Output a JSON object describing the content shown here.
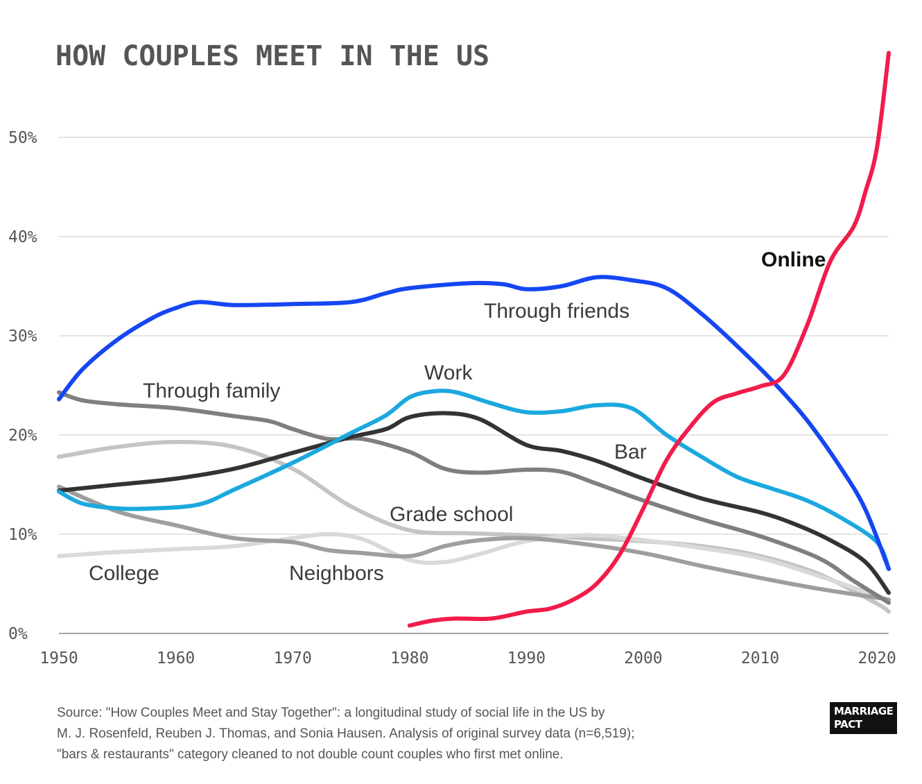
{
  "chart_data": {
    "type": "line",
    "title": "HOW COUPLES MEET IN THE US",
    "xlabel": "",
    "ylabel": "",
    "xlim": [
      1950,
      2021
    ],
    "ylim": [
      0,
      55
    ],
    "x_ticks": [
      "1950",
      "1960",
      "1970",
      "1980",
      "1990",
      "2000",
      "2010",
      "2020"
    ],
    "y_ticks": [
      {
        "value": 0,
        "label": "0%"
      },
      {
        "value": 10,
        "label": "10%"
      },
      {
        "value": 20,
        "label": "20%"
      },
      {
        "value": 30,
        "label": "30%"
      },
      {
        "value": 40,
        "label": "40%"
      },
      {
        "value": 50,
        "label": "50%"
      }
    ],
    "grid": true,
    "series": [
      {
        "name": "Grade school",
        "color": "#c4c4c4",
        "x": [
          1950,
          1955,
          1960,
          1965,
          1970,
          1975,
          1980,
          1985,
          1990,
          1995,
          2000,
          2005,
          2010,
          2015,
          2020,
          2021
        ],
        "y": [
          17.8,
          18.8,
          19.3,
          18.8,
          16.6,
          12.8,
          10.4,
          10.1,
          9.9,
          9.6,
          9.3,
          8.8,
          7.8,
          6.0,
          3.0,
          2.2
        ]
      },
      {
        "name": "College",
        "color": "#d9d9d9",
        "x": [
          1950,
          1955,
          1960,
          1965,
          1970,
          1973,
          1976,
          1980,
          1983,
          1986,
          1990,
          1995,
          2000,
          2005,
          2010,
          2015,
          2020,
          2021
        ],
        "y": [
          7.8,
          8.2,
          8.5,
          8.8,
          9.6,
          10.0,
          9.5,
          7.4,
          7.2,
          8.0,
          9.3,
          9.9,
          9.4,
          8.6,
          7.6,
          5.8,
          3.8,
          3.4
        ]
      },
      {
        "name": "Neighbors",
        "color": "#9e9e9e",
        "x": [
          1950,
          1955,
          1960,
          1965,
          1970,
          1973,
          1976,
          1980,
          1983,
          1986,
          1990,
          1995,
          2000,
          2005,
          2010,
          2015,
          2020,
          2021
        ],
        "y": [
          14.8,
          12.3,
          10.9,
          9.6,
          9.2,
          8.4,
          8.1,
          7.8,
          8.8,
          9.4,
          9.6,
          9.0,
          8.1,
          6.8,
          5.6,
          4.5,
          3.6,
          3.4
        ]
      },
      {
        "name": "Through family",
        "color": "#7f7f7f",
        "x": [
          1950,
          1952,
          1955,
          1960,
          1965,
          1968,
          1970,
          1973,
          1976,
          1980,
          1983,
          1986,
          1990,
          1993,
          1996,
          2000,
          2005,
          2010,
          2015,
          2018,
          2021
        ],
        "y": [
          24.3,
          23.5,
          23.1,
          22.7,
          21.9,
          21.4,
          20.6,
          19.6,
          19.6,
          18.3,
          16.6,
          16.2,
          16.5,
          16.3,
          15.1,
          13.4,
          11.5,
          9.8,
          7.6,
          5.3,
          3.1
        ]
      },
      {
        "name": "Bar",
        "color": "#333333",
        "x": [
          1950,
          1955,
          1960,
          1965,
          1970,
          1975,
          1978,
          1980,
          1983,
          1986,
          1990,
          1993,
          1996,
          2000,
          2005,
          2010,
          2013,
          2016,
          2019,
          2021
        ],
        "y": [
          14.4,
          15.0,
          15.6,
          16.6,
          18.2,
          19.8,
          20.6,
          21.8,
          22.2,
          21.6,
          19.0,
          18.4,
          17.4,
          15.6,
          13.6,
          12.2,
          11.0,
          9.4,
          7.2,
          4.1
        ]
      },
      {
        "name": "Work",
        "color": "#1ba8df",
        "x": [
          1950,
          1952,
          1955,
          1958,
          1962,
          1965,
          1970,
          1975,
          1978,
          1980,
          1982,
          1984,
          1987,
          1990,
          1993,
          1996,
          1999,
          2002,
          2005,
          2008,
          2011,
          2014,
          2017,
          2020,
          2021
        ],
        "y": [
          14.3,
          13.1,
          12.6,
          12.6,
          13.0,
          14.5,
          17.2,
          20.2,
          22.0,
          23.8,
          24.4,
          24.3,
          23.2,
          22.3,
          22.4,
          23.0,
          22.7,
          20.0,
          17.8,
          15.8,
          14.6,
          13.4,
          11.6,
          9.2,
          6.5
        ]
      },
      {
        "name": "Through friends",
        "color": "#1546f2",
        "x": [
          1950,
          1952,
          1955,
          1958,
          1960,
          1962,
          1965,
          1970,
          1975,
          1978,
          1980,
          1985,
          1988,
          1990,
          1993,
          1996,
          1999,
          2002,
          2005,
          2008,
          2011,
          2014,
          2017,
          2019,
          2021
        ],
        "y": [
          23.6,
          26.6,
          29.6,
          31.8,
          32.8,
          33.4,
          33.1,
          33.2,
          33.4,
          34.3,
          34.8,
          35.3,
          35.2,
          34.7,
          35.0,
          35.9,
          35.6,
          34.8,
          32.2,
          29.0,
          25.5,
          21.5,
          16.5,
          12.5,
          6.5
        ]
      },
      {
        "name": "Online",
        "color": "#f11c4b",
        "x": [
          1980,
          1982,
          1984,
          1987,
          1990,
          1992,
          1994,
          1996,
          1998,
          2000,
          2002,
          2004,
          2006,
          2008,
          2010,
          2012,
          2014,
          2016,
          2018,
          2019,
          2020,
          2021
        ],
        "y": [
          0.8,
          1.3,
          1.5,
          1.5,
          2.2,
          2.5,
          3.4,
          5.0,
          8.0,
          12.6,
          17.5,
          20.8,
          23.3,
          24.2,
          24.9,
          26.0,
          31.0,
          37.5,
          41.0,
          44.5,
          49.0,
          58.5
        ]
      }
    ]
  },
  "labels": {
    "online": "Online",
    "through_friends": "Through friends",
    "work": "Work",
    "through_family": "Through family",
    "bar": "Bar",
    "grade_school": "Grade school",
    "college": "College",
    "neighbors": "Neighbors"
  },
  "source": {
    "line1": "Source: \"How Couples Meet and Stay Together\": a longitudinal study of social life in the US by",
    "line2": "M. J. Rosenfeld, Reuben J. Thomas, and Sonia Hausen. Analysis of original survey data (n=6,519);",
    "line3": "\"bars & restaurants\" category cleaned to not double count couples who first met online."
  },
  "logo": {
    "line1": "MARRIAGE",
    "line2": "PACT"
  }
}
